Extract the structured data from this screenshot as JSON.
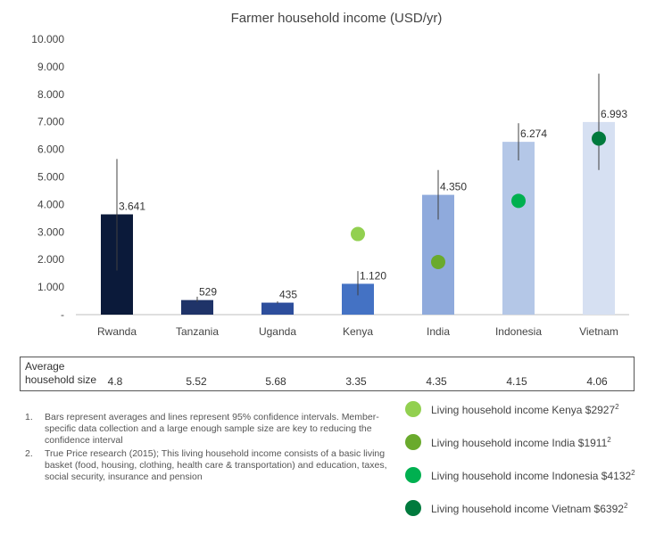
{
  "chart_data": {
    "type": "bar",
    "title": "Farmer household income (USD/yr)",
    "categories": [
      "Rwanda",
      "Tanzania",
      "Uganda",
      "Kenya",
      "India",
      "Indonesia",
      "Vietnam"
    ],
    "values": [
      3641,
      529,
      435,
      1120,
      4350,
      6274,
      6993
    ],
    "value_labels": [
      "3.641",
      "529",
      "435",
      "1.120",
      "4.350",
      "6.274",
      "6.993"
    ],
    "error_bars": [
      {
        "low": 1600,
        "high": 5650
      },
      {
        "low": 460,
        "high": 650
      },
      {
        "low": 400,
        "high": 480
      },
      {
        "low": 700,
        "high": 1580
      },
      {
        "low": 3450,
        "high": 5250
      },
      {
        "low": 5600,
        "high": 6950
      },
      {
        "low": 5250,
        "high": 8750
      }
    ],
    "bar_colors": [
      "#0b1a3a",
      "#1f3368",
      "#2d4e9c",
      "#4472c4",
      "#8faadc",
      "#b4c7e7",
      "#d6e0f2"
    ],
    "ylim": [
      0,
      10000
    ],
    "y_ticks": [
      0,
      1000,
      2000,
      3000,
      4000,
      5000,
      6000,
      7000,
      8000,
      9000,
      10000
    ],
    "y_tick_labels": [
      "-",
      "1.000",
      "2.000",
      "3.000",
      "4.000",
      "5.000",
      "6.000",
      "7.000",
      "8.000",
      "9.000",
      "10.000"
    ],
    "grid": false,
    "living_income_markers": [
      {
        "category": "Kenya",
        "value": 2927,
        "color": "#92d050"
      },
      {
        "category": "India",
        "value": 1911,
        "color": "#6aaa2d"
      },
      {
        "category": "Indonesia",
        "value": 4132,
        "color": "#00b050"
      },
      {
        "category": "Vietnam",
        "value": 6392,
        "color": "#007a3d"
      }
    ]
  },
  "household": {
    "title": "Average household size",
    "values": [
      "4.8",
      "5.52",
      "5.68",
      "3.35",
      "4.35",
      "4.15",
      "4.06"
    ]
  },
  "notes": [
    {
      "num": "1.",
      "text": "Bars represent averages and lines represent 95% confidence intervals. Member-specific data collection and a large enough sample size are key to reducing the confidence interval"
    },
    {
      "num": "2.",
      "text": "True Price research (2015); This living household income consists of a basic living basket (food, housing, clothing, health care & transportation) and education, taxes, social security, insurance and pension"
    }
  ],
  "legend": [
    {
      "text": "Living household income Kenya $2927",
      "sup": "2",
      "color": "#92d050"
    },
    {
      "text": "Living household income India $1911",
      "sup": "2",
      "color": "#6aaa2d"
    },
    {
      "text": "Living household income Indonesia $4132",
      "sup": "2",
      "color": "#00b050"
    },
    {
      "text": "Living household income Vietnam $6392",
      "sup": "2",
      "color": "#007a3d"
    }
  ]
}
